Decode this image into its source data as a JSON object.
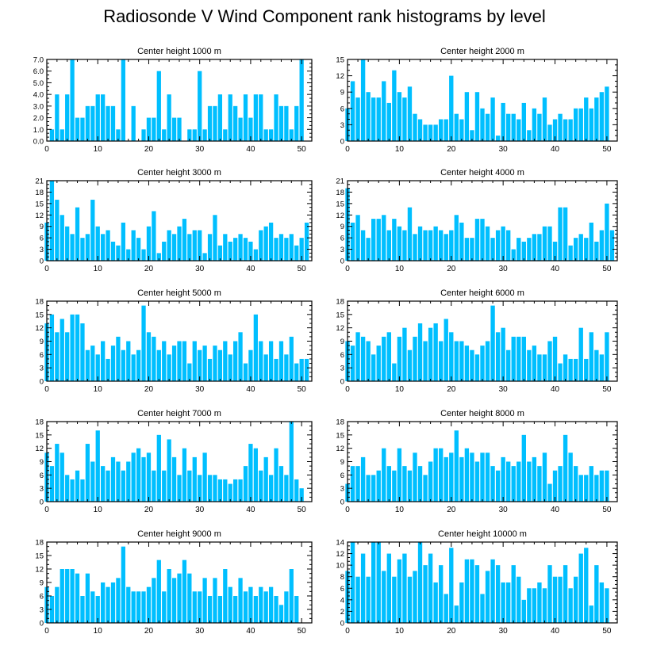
{
  "title": "Radiosonde V Wind Component rank histograms by level",
  "colors": {
    "bar": "#00bfff",
    "axis": "#000000",
    "background": "#ffffff"
  },
  "chart_data": [
    {
      "type": "bar",
      "title": "Center height 1000 m",
      "xlabel": "",
      "ylabel": "",
      "xlim": [
        0,
        52
      ],
      "ylim": [
        0,
        7
      ],
      "yticks": [
        "0.0",
        "1.0",
        "2.0",
        "3.0",
        "4.0",
        "5.0",
        "6.0",
        "7.0"
      ],
      "xticks": [
        "0",
        "10",
        "20",
        "30",
        "40",
        "50"
      ],
      "x_start": 1,
      "values": [
        1,
        4,
        1,
        4,
        7,
        2,
        2,
        3,
        3,
        4,
        4,
        3,
        3,
        1,
        7,
        0,
        3,
        0,
        1,
        2,
        2,
        6,
        1,
        4,
        2,
        2,
        0,
        1,
        1,
        6,
        1,
        3,
        3,
        4,
        1,
        4,
        3,
        2,
        4,
        2,
        4,
        4,
        1,
        1,
        4,
        3,
        3,
        1,
        3,
        7
      ]
    },
    {
      "type": "bar",
      "title": "Center height 2000 m",
      "xlabel": "",
      "ylabel": "",
      "xlim": [
        0,
        52
      ],
      "ylim": [
        0,
        15
      ],
      "yticks": [
        "0",
        "3",
        "6",
        "9",
        "12",
        "15"
      ],
      "xticks": [
        "0",
        "10",
        "20",
        "30",
        "40",
        "50"
      ],
      "x_start": 0,
      "values": [
        6,
        11,
        8,
        15,
        9,
        8,
        8,
        11,
        7,
        13,
        9,
        8,
        10,
        5,
        4,
        3,
        3,
        3,
        4,
        4,
        12,
        5,
        4,
        9,
        2,
        9,
        6,
        5,
        8,
        1,
        7,
        5,
        5,
        4,
        7,
        2,
        6,
        5,
        8,
        3,
        4,
        5,
        4,
        4,
        6,
        6,
        8,
        6,
        8,
        9,
        10
      ]
    },
    {
      "type": "bar",
      "title": "Center height 3000 m",
      "xlabel": "",
      "ylabel": "",
      "xlim": [
        0,
        52
      ],
      "ylim": [
        0,
        21
      ],
      "yticks": [
        "0",
        "3",
        "6",
        "9",
        "12",
        "15",
        "18",
        "21"
      ],
      "xticks": [
        "0",
        "10",
        "20",
        "30",
        "40",
        "50"
      ],
      "x_start": 0,
      "values": [
        10,
        21,
        16,
        12,
        9,
        7,
        14,
        6,
        7,
        16,
        9,
        7,
        8,
        5,
        4,
        10,
        3,
        8,
        6,
        3,
        9,
        13,
        2,
        5,
        8,
        7,
        9,
        11,
        7,
        8,
        8,
        2,
        7,
        12,
        4,
        7,
        5,
        6,
        7,
        6,
        5,
        3,
        8,
        9,
        10,
        6,
        7,
        6,
        7,
        4,
        6,
        10
      ]
    },
    {
      "type": "bar",
      "title": "Center height 4000 m",
      "xlabel": "",
      "ylabel": "",
      "xlim": [
        0,
        52
      ],
      "ylim": [
        0,
        21
      ],
      "yticks": [
        "0",
        "3",
        "6",
        "9",
        "12",
        "15",
        "18",
        "21"
      ],
      "xticks": [
        "0",
        "10",
        "20",
        "30",
        "40",
        "50"
      ],
      "x_start": 0,
      "values": [
        19,
        10,
        12,
        8,
        6,
        11,
        11,
        12,
        8,
        11,
        9,
        8,
        14,
        7,
        9,
        8,
        8,
        9,
        8,
        7,
        8,
        12,
        10,
        6,
        6,
        11,
        11,
        9,
        6,
        8,
        9,
        8,
        3,
        6,
        5,
        6,
        7,
        7,
        9,
        9,
        5,
        14,
        14,
        4,
        6,
        7,
        6,
        10,
        5,
        8,
        15,
        8
      ]
    },
    {
      "type": "bar",
      "title": "Center height 5000 m",
      "xlabel": "",
      "ylabel": "",
      "xlim": [
        0,
        52
      ],
      "ylim": [
        0,
        18
      ],
      "yticks": [
        "0",
        "3",
        "6",
        "9",
        "12",
        "15",
        "18"
      ],
      "xticks": [
        "0",
        "10",
        "20",
        "30",
        "40",
        "50"
      ],
      "x_start": 0,
      "values": [
        13,
        15,
        11,
        14,
        11,
        15,
        15,
        13,
        7,
        8,
        6,
        9,
        5,
        8,
        10,
        7,
        9,
        6,
        7,
        17,
        11,
        10,
        7,
        9,
        6,
        8,
        9,
        9,
        4,
        9,
        7,
        8,
        5,
        8,
        7,
        9,
        6,
        9,
        11,
        4,
        7,
        15,
        9,
        6,
        9,
        5,
        9,
        6,
        10,
        4,
        5,
        5
      ]
    },
    {
      "type": "bar",
      "title": "Center height 6000 m",
      "xlabel": "",
      "ylabel": "",
      "xlim": [
        0,
        52
      ],
      "ylim": [
        0,
        18
      ],
      "yticks": [
        "0",
        "3",
        "6",
        "9",
        "12",
        "15",
        "18"
      ],
      "xticks": [
        "0",
        "10",
        "20",
        "30",
        "40",
        "50"
      ],
      "x_start": 0,
      "values": [
        9,
        8,
        11,
        10,
        9,
        6,
        8,
        10,
        11,
        4,
        10,
        12,
        7,
        10,
        13,
        9,
        12,
        13,
        9,
        14,
        11,
        9,
        9,
        8,
        7,
        6,
        8,
        9,
        17,
        11,
        12,
        7,
        10,
        10,
        10,
        7,
        8,
        6,
        6,
        9,
        10,
        4,
        6,
        5,
        5,
        12,
        5,
        11,
        7,
        6,
        11
      ]
    },
    {
      "type": "bar",
      "title": "Center height 7000 m",
      "xlabel": "",
      "ylabel": "",
      "xlim": [
        0,
        52
      ],
      "ylim": [
        0,
        18
      ],
      "yticks": [
        "0",
        "3",
        "6",
        "9",
        "12",
        "15",
        "18"
      ],
      "xticks": [
        "0",
        "10",
        "20",
        "30",
        "40",
        "50"
      ],
      "x_start": 0,
      "values": [
        11,
        8,
        13,
        11,
        6,
        5,
        7,
        5,
        13,
        9,
        16,
        8,
        7,
        10,
        9,
        7,
        9,
        11,
        12,
        10,
        11,
        7,
        15,
        7,
        14,
        10,
        6,
        12,
        7,
        10,
        6,
        11,
        6,
        6,
        5,
        5,
        4,
        5,
        5,
        8,
        13,
        12,
        7,
        10,
        6,
        12,
        8,
        6,
        18,
        5,
        3
      ]
    },
    {
      "type": "bar",
      "title": "Center height 8000 m",
      "xlabel": "",
      "ylabel": "",
      "xlim": [
        0,
        52
      ],
      "ylim": [
        0,
        18
      ],
      "yticks": [
        "0",
        "3",
        "6",
        "9",
        "12",
        "15",
        "18"
      ],
      "xticks": [
        "0",
        "10",
        "20",
        "30",
        "40",
        "50"
      ],
      "x_start": 0,
      "values": [
        4,
        8,
        8,
        10,
        6,
        6,
        7,
        12,
        8,
        7,
        12,
        8,
        7,
        11,
        8,
        6,
        9,
        12,
        12,
        10,
        11,
        16,
        10,
        12,
        11,
        9,
        11,
        11,
        8,
        7,
        10,
        9,
        8,
        9,
        15,
        9,
        10,
        8,
        11,
        4,
        7,
        8,
        15,
        11,
        8,
        6,
        6,
        8,
        6,
        7,
        7
      ]
    },
    {
      "type": "bar",
      "title": "Center height 9000 m",
      "xlabel": "",
      "ylabel": "",
      "xlim": [
        0,
        52
      ],
      "ylim": [
        0,
        18
      ],
      "yticks": [
        "0",
        "3",
        "6",
        "9",
        "12",
        "15",
        "18"
      ],
      "xticks": [
        "0",
        "10",
        "20",
        "30",
        "40",
        "50"
      ],
      "x_start": 0,
      "values": [
        8,
        6,
        8,
        12,
        12,
        12,
        11,
        6,
        11,
        7,
        6,
        9,
        8,
        9,
        10,
        17,
        8,
        7,
        7,
        7,
        8,
        10,
        14,
        7,
        12,
        10,
        11,
        14,
        11,
        7,
        7,
        10,
        6,
        10,
        6,
        12,
        8,
        6,
        10,
        7,
        8,
        6,
        8,
        7,
        8,
        6,
        4,
        7,
        12,
        6
      ]
    },
    {
      "type": "bar",
      "title": "Center height 10000 m",
      "xlabel": "",
      "ylabel": "",
      "xlim": [
        0,
        52
      ],
      "ylim": [
        0,
        14
      ],
      "yticks": [
        "0",
        "2",
        "4",
        "6",
        "8",
        "10",
        "12",
        "14"
      ],
      "xticks": [
        "0",
        "10",
        "20",
        "30",
        "40",
        "50"
      ],
      "x_start": 0,
      "values": [
        9,
        14,
        8,
        12,
        8,
        14,
        14,
        9,
        12,
        8,
        11,
        12,
        8,
        9,
        14,
        10,
        12,
        7,
        10,
        5,
        13,
        3,
        7,
        11,
        11,
        10,
        5,
        9,
        11,
        10,
        7,
        7,
        10,
        8,
        4,
        6,
        6,
        7,
        6,
        10,
        8,
        8,
        10,
        6,
        8,
        12,
        13,
        3,
        10,
        7,
        6
      ]
    }
  ]
}
